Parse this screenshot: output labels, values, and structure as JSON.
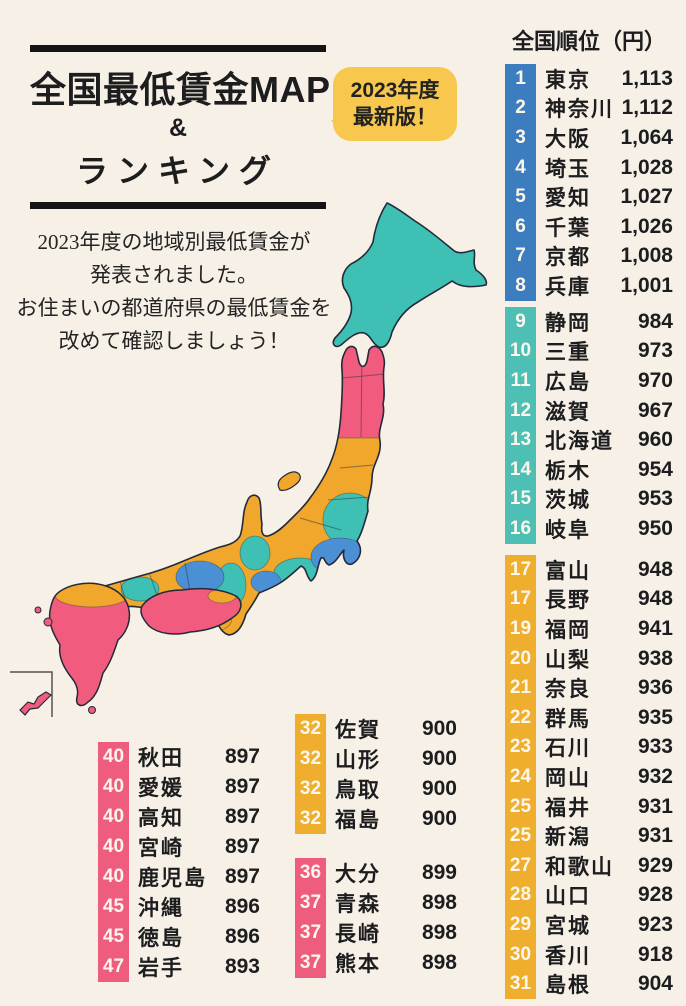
{
  "page": {
    "background": "#F6F0E6"
  },
  "title": {
    "line1": "全国最低賃金MAP",
    "line2": "&",
    "line3": "ランキング"
  },
  "badge": {
    "line1": "2023年度",
    "line2": "最新版！",
    "color": "#F7C74E"
  },
  "description": {
    "lines": [
      "2023年度の地域別最低賃金が",
      "発表されました。",
      "お住まいの都道府県の最低賃金を",
      "改めて確認しましょう！"
    ]
  },
  "ranking": {
    "header": "全国順位（円）",
    "groups": [
      {
        "id": "rank-1-8",
        "color": "#3C7DC0",
        "rank_range": "1–8",
        "rows": [
          {
            "rank": "1",
            "name": "東京",
            "value": "1,113"
          },
          {
            "rank": "2",
            "name": "神奈川",
            "value": "1,112"
          },
          {
            "rank": "3",
            "name": "大阪",
            "value": "1,064"
          },
          {
            "rank": "4",
            "name": "埼玉",
            "value": "1,028"
          },
          {
            "rank": "5",
            "name": "愛知",
            "value": "1,027"
          },
          {
            "rank": "6",
            "name": "千葉",
            "value": "1,026"
          },
          {
            "rank": "7",
            "name": "京都",
            "value": "1,008"
          },
          {
            "rank": "8",
            "name": "兵庫",
            "value": "1,001"
          }
        ]
      },
      {
        "id": "rank-9-16",
        "color": "#4DBFB4",
        "rank_range": "9–16",
        "rows": [
          {
            "rank": "9",
            "name": "静岡",
            "value": "984"
          },
          {
            "rank": "10",
            "name": "三重",
            "value": "973"
          },
          {
            "rank": "11",
            "name": "広島",
            "value": "970"
          },
          {
            "rank": "12",
            "name": "滋賀",
            "value": "967"
          },
          {
            "rank": "13",
            "name": "北海道",
            "value": "960"
          },
          {
            "rank": "14",
            "name": "栃木",
            "value": "954"
          },
          {
            "rank": "15",
            "name": "茨城",
            "value": "953"
          },
          {
            "rank": "16",
            "name": "岐阜",
            "value": "950"
          }
        ]
      },
      {
        "id": "rank-17-31",
        "color": "#EFAE2E",
        "rank_range": "17–31",
        "rows": [
          {
            "rank": "17",
            "name": "富山",
            "value": "948"
          },
          {
            "rank": "17",
            "name": "長野",
            "value": "948"
          },
          {
            "rank": "19",
            "name": "福岡",
            "value": "941"
          },
          {
            "rank": "20",
            "name": "山梨",
            "value": "938"
          },
          {
            "rank": "21",
            "name": "奈良",
            "value": "936"
          },
          {
            "rank": "22",
            "name": "群馬",
            "value": "935"
          },
          {
            "rank": "23",
            "name": "石川",
            "value": "933"
          },
          {
            "rank": "24",
            "name": "岡山",
            "value": "932"
          },
          {
            "rank": "25",
            "name": "福井",
            "value": "931"
          },
          {
            "rank": "25",
            "name": "新潟",
            "value": "931"
          },
          {
            "rank": "27",
            "name": "和歌山",
            "value": "929"
          },
          {
            "rank": "28",
            "name": "山口",
            "value": "928"
          },
          {
            "rank": "29",
            "name": "宮城",
            "value": "923"
          },
          {
            "rank": "30",
            "name": "香川",
            "value": "918"
          },
          {
            "rank": "31",
            "name": "島根",
            "value": "904"
          }
        ]
      }
    ],
    "bottom_left_group": {
      "id": "rank-40-47",
      "color": "#EE5D7D",
      "rank_range": "40–47",
      "rows": [
        {
          "rank": "40",
          "name": "秋田",
          "value": "897"
        },
        {
          "rank": "40",
          "name": "愛媛",
          "value": "897"
        },
        {
          "rank": "40",
          "name": "高知",
          "value": "897"
        },
        {
          "rank": "40",
          "name": "宮崎",
          "value": "897"
        },
        {
          "rank": "40",
          "name": "鹿児島",
          "value": "897"
        },
        {
          "rank": "45",
          "name": "沖縄",
          "value": "896"
        },
        {
          "rank": "45",
          "name": "徳島",
          "value": "896"
        },
        {
          "rank": "47",
          "name": "岩手",
          "value": "893"
        }
      ]
    },
    "bottom_mid_orange_group": {
      "id": "rank-32-35",
      "color": "#EFAE2E",
      "rank_range": "32–35",
      "rows": [
        {
          "rank": "32",
          "name": "佐賀",
          "value": "900"
        },
        {
          "rank": "32",
          "name": "山形",
          "value": "900"
        },
        {
          "rank": "32",
          "name": "鳥取",
          "value": "900"
        },
        {
          "rank": "32",
          "name": "福島",
          "value": "900"
        }
      ]
    },
    "bottom_mid_pink_group": {
      "id": "rank-36-39",
      "color": "#EE5D7D",
      "rank_range": "36–39",
      "rows": [
        {
          "rank": "36",
          "name": "大分",
          "value": "899"
        },
        {
          "rank": "37",
          "name": "青森",
          "value": "898"
        },
        {
          "rank": "37",
          "name": "長崎",
          "value": "898"
        },
        {
          "rank": "37",
          "name": "熊本",
          "value": "898"
        }
      ]
    }
  },
  "map": {
    "colors": {
      "teal": "#3EC0B4",
      "orange": "#F0A72B",
      "blue": "#4B90D4",
      "pink": "#F15C7E",
      "outline": "#242A3A",
      "inset_frame": "#55524C"
    },
    "regions": [
      {
        "name": "北海道",
        "color_key": "teal"
      },
      {
        "name": "東北北部（青森・秋田・岩手）",
        "color_key": "pink"
      },
      {
        "name": "東北南部・北陸・中部（宮城・山形・福島・新潟・長野・群馬・山梨・富山・石川・福井ほか）",
        "color_key": "orange"
      },
      {
        "name": "栃木・茨城",
        "color_key": "teal"
      },
      {
        "name": "首都圏（埼玉・東京・千葉・神奈川）",
        "color_key": "blue"
      },
      {
        "name": "静岡・岐阜・三重・滋賀",
        "color_key": "teal"
      },
      {
        "name": "愛知",
        "color_key": "blue"
      },
      {
        "name": "近畿（京都・大阪・兵庫）",
        "color_key": "blue"
      },
      {
        "name": "和歌山・中国地方（鳥取・島根・岡山・山口）",
        "color_key": "orange"
      },
      {
        "name": "広島",
        "color_key": "teal"
      },
      {
        "name": "四国（徳島・愛媛・高知）",
        "color_key": "pink"
      },
      {
        "name": "香川",
        "color_key": "orange"
      },
      {
        "name": "北部九州（福岡・佐賀）",
        "color_key": "orange"
      },
      {
        "name": "九州（長崎・熊本・大分・宮崎・鹿児島）",
        "color_key": "pink"
      },
      {
        "name": "沖縄",
        "color_key": "pink"
      }
    ]
  }
}
